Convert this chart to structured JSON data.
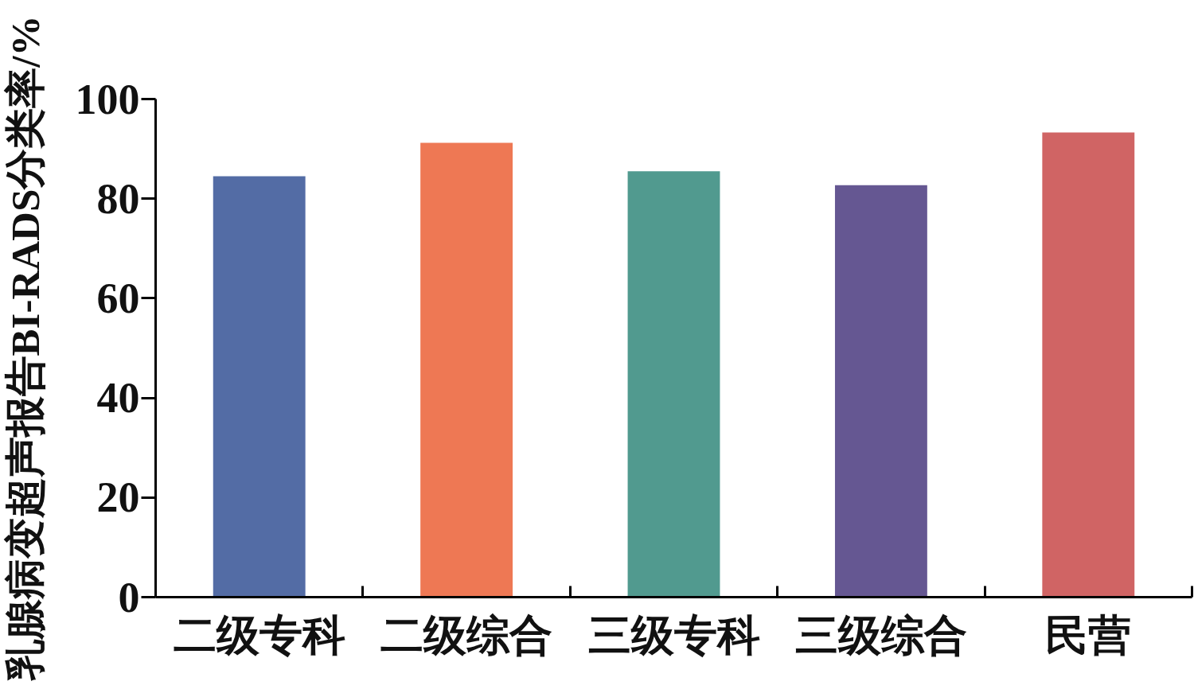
{
  "chart_data": {
    "type": "bar",
    "ylabel": "乳腺病变超声报告BI-RADS分类率/%",
    "categories": [
      "二级专科",
      "二级综合",
      "三级专科",
      "三级综合",
      "民营"
    ],
    "values": [
      84.5,
      91.2,
      85.5,
      82.7,
      93.3
    ],
    "colors": [
      "#536ca5",
      "#ee7854",
      "#519a8f",
      "#655792",
      "#d06464"
    ],
    "ylim": [
      0,
      100
    ],
    "yticks": [
      0,
      20,
      40,
      60,
      80,
      100
    ],
    "grid": false
  }
}
